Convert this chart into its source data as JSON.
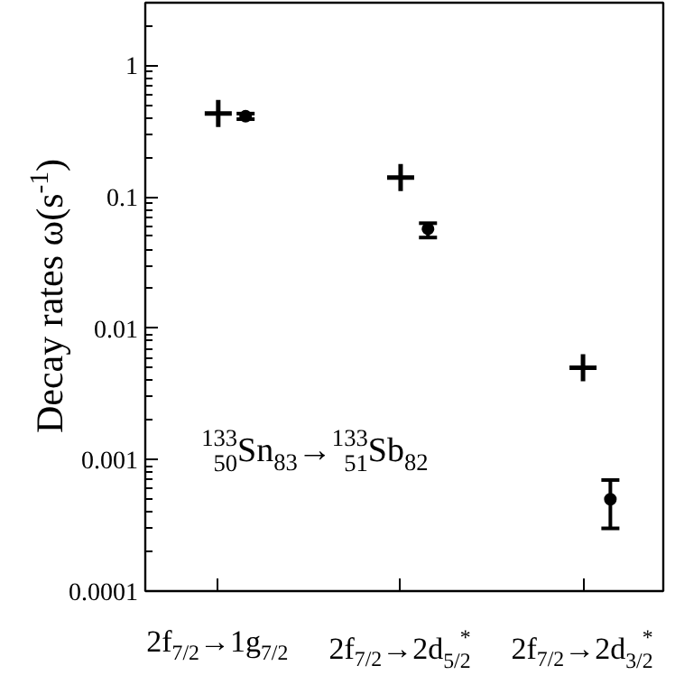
{
  "chart_data": {
    "type": "scatter",
    "ylabel": "Decay rates ω(s$^{-1}$)",
    "log": "y",
    "ylim": [
      0.0001,
      3
    ],
    "categories": [
      "2f$_{7/2}$→1g$_{7/2}$",
      "2f$_{7/2}$→2d$^{*}$$_{5/2}$",
      "2f$_{7/2}$→2d$^{*}$$_{3/2}$"
    ],
    "yticks": [
      0.0001,
      0.001,
      0.01,
      0.1,
      1
    ],
    "grid": false,
    "annotations": [
      "$^{133}$$_{50}$Sn$_{83}$→$^{133}$$_{51}$Sb$_{82}$"
    ],
    "series": [
      {
        "marker": "cross",
        "color": "#000000",
        "values": [
          0.43,
          0.14,
          0.005
        ]
      },
      {
        "marker": "circle",
        "color": "#000000",
        "values": [
          0.41,
          0.057,
          0.0005
        ],
        "errors": [
          [
            0.39,
            0.43
          ],
          [
            0.049,
            0.063
          ],
          [
            0.0003,
            0.0007
          ]
        ]
      }
    ]
  }
}
